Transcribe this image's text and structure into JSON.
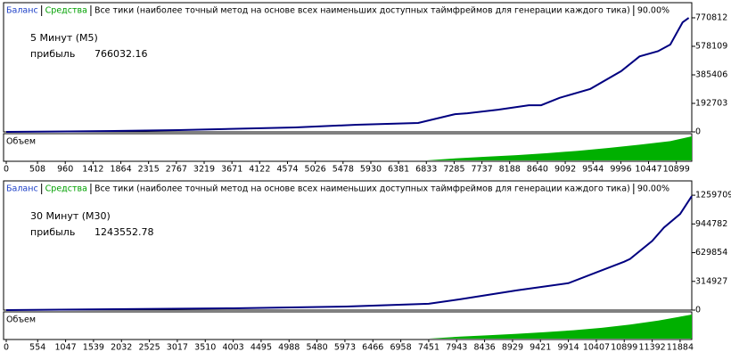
{
  "chart_data": [
    {
      "type": "line",
      "legend_items": [
        {
          "label": "Баланс",
          "color": "#1c3fc7"
        },
        {
          "label": "Средства",
          "color": "#00a000"
        }
      ],
      "description": "Все тики (наиболее точный метод на основе всех наименьших доступных таймфреймов для генерации каждого тика)",
      "quality": "90.00%",
      "period_label": "5 Минут (M5)",
      "profit_label": "прибыль",
      "profit": 766032.16,
      "series": [
        {
          "name": "Баланс",
          "color": "#000080",
          "x": [
            0,
            1000,
            2000,
            2800,
            4700,
            5700,
            6700,
            7300,
            7500,
            8000,
            8500,
            8700,
            9000,
            9500,
            10000,
            10300,
            10600,
            10800,
            11000,
            11100
          ],
          "values": [
            0,
            3000,
            7000,
            12000,
            30000,
            48000,
            60000,
            120000,
            126000,
            150000,
            180000,
            180000,
            230000,
            290000,
            410000,
            510000,
            545000,
            590000,
            740000,
            770000
          ]
        }
      ],
      "volume_label": "Объем",
      "volume": {
        "color": "#00b000",
        "x": [
          6833,
          7300,
          7800,
          8300,
          8800,
          9300,
          9800,
          10300,
          10800,
          11150
        ],
        "values": [
          0,
          8,
          15,
          22,
          30,
          40,
          52,
          65,
          80,
          100
        ]
      },
      "xlim": [
        0,
        11150
      ],
      "xticks": [
        0,
        508,
        960,
        1412,
        1864,
        2315,
        2767,
        3219,
        3671,
        4122,
        4574,
        5026,
        5478,
        5930,
        6381,
        6833,
        7285,
        7737,
        8188,
        8640,
        9092,
        9544,
        9996,
        10447,
        10899
      ],
      "ylim": [
        0,
        873000
      ],
      "yticks": [
        0,
        192703,
        385406,
        578109,
        770812
      ]
    },
    {
      "type": "line",
      "legend_items": [
        {
          "label": "Баланс",
          "color": "#1c3fc7"
        },
        {
          "label": "Средства",
          "color": "#00a000"
        }
      ],
      "description": "Все тики (наиболее точный метод на основе всех наименьших доступных таймфреймов для генерации каждого тика)",
      "quality": "90.00%",
      "period_label": "30 Минут (M30)",
      "profit_label": "прибыль",
      "profit": 1243552.78,
      "series": [
        {
          "name": "Баланс",
          "color": "#000080",
          "x": [
            0,
            4000,
            6000,
            7451,
            8000,
            9000,
            9914,
            10407,
            10899,
            11000,
            11392,
            11600,
            11884,
            12090
          ],
          "values": [
            0,
            20000,
            39000,
            69000,
            118000,
            216000,
            295000,
            413000,
            531000,
            561000,
            758000,
            905000,
            1053000,
            1250000
          ]
        }
      ],
      "volume_label": "Объем",
      "volume": {
        "color": "#00b000",
        "x": [
          7451,
          8000,
          8500,
          9000,
          9500,
          10000,
          10500,
          11000,
          11500,
          12090
        ],
        "values": [
          0,
          8,
          14,
          20,
          27,
          35,
          45,
          58,
          75,
          100
        ]
      },
      "xlim": [
        0,
        12090
      ],
      "xticks": [
        0,
        554,
        1047,
        1539,
        2032,
        2525,
        3017,
        3510,
        4003,
        4495,
        4988,
        5480,
        5973,
        6466,
        6958,
        7451,
        7943,
        8436,
        8929,
        9421,
        9914,
        10407,
        10899,
        11392,
        11884
      ],
      "ylim": [
        0,
        1417000
      ],
      "yticks": [
        0,
        314927,
        629854,
        944782,
        1259709
      ]
    }
  ]
}
